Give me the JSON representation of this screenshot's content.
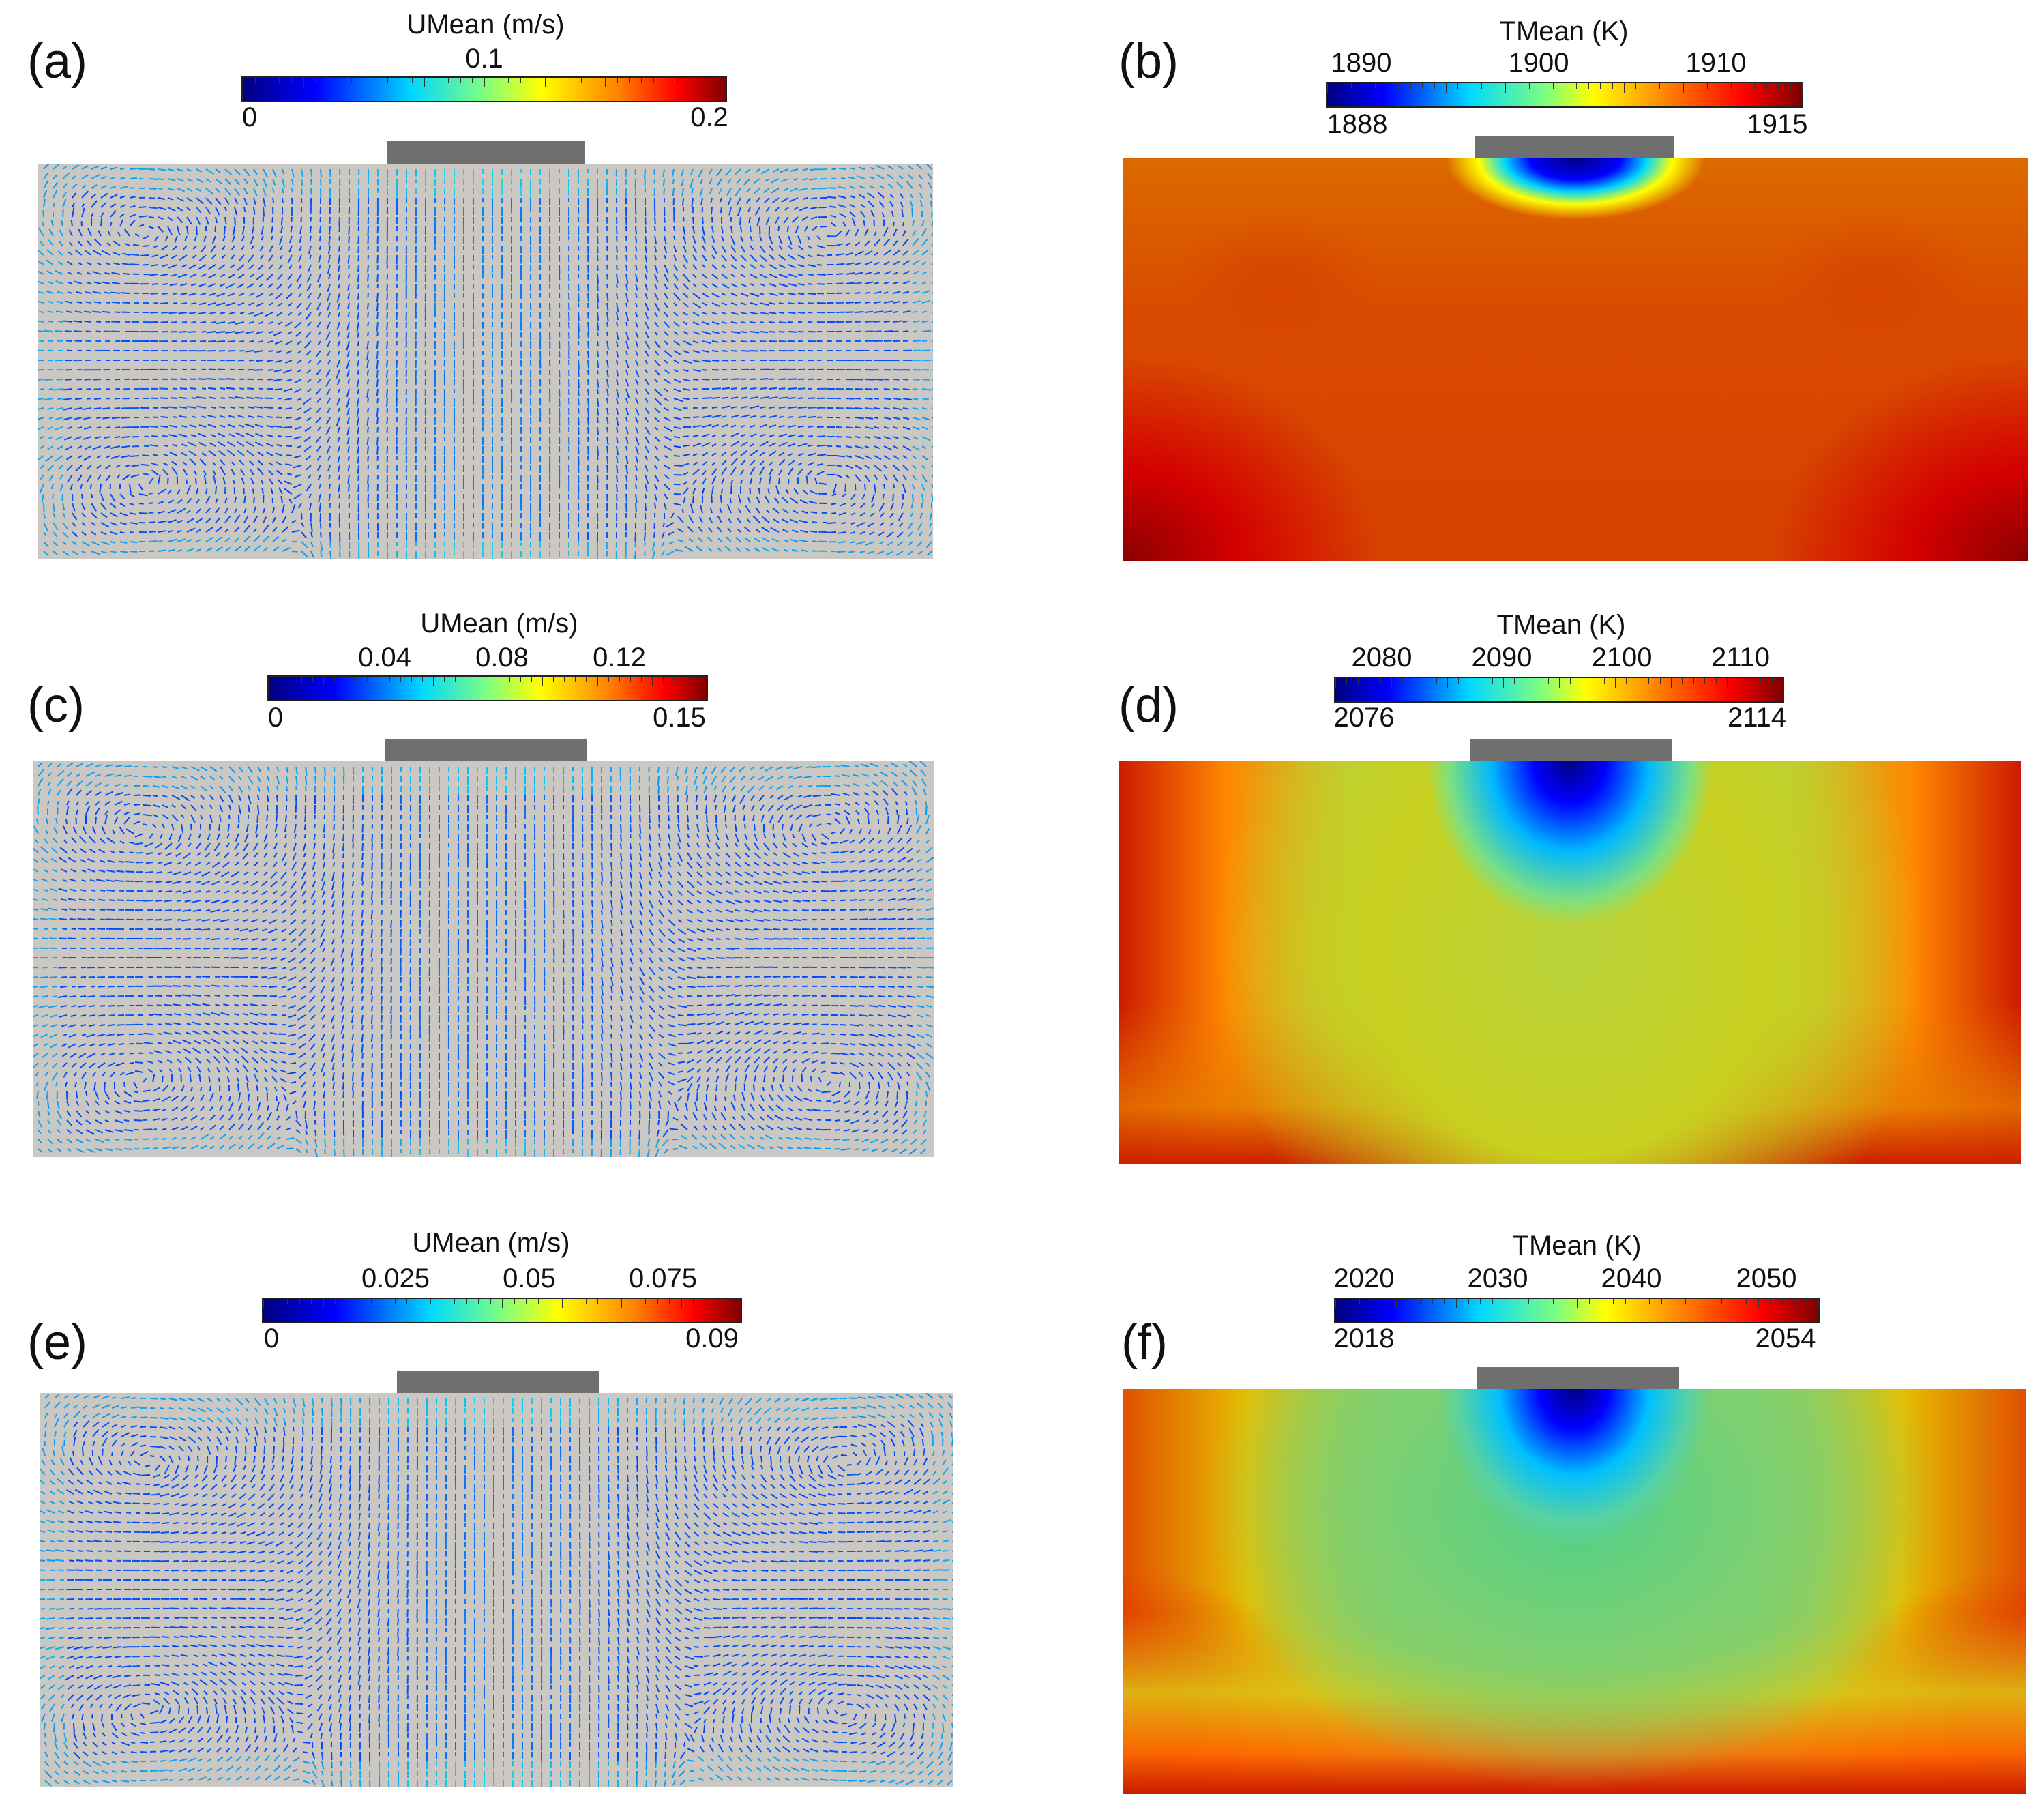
{
  "panels": [
    {
      "id": "a",
      "label": "(a)",
      "cb_title": "UMean (m/s)",
      "top_ticks": [
        "0.1"
      ],
      "min": "0",
      "max": "0.2",
      "field": "velocity"
    },
    {
      "id": "b",
      "label": "(b)",
      "cb_title": "TMean (K)",
      "top_ticks": [
        "1890",
        "1900",
        "1910"
      ],
      "min": "1888",
      "max": "1915",
      "field": "temperature"
    },
    {
      "id": "c",
      "label": "(c)",
      "cb_title": "UMean (m/s)",
      "top_ticks": [
        "0.04",
        "0.08",
        "0.12"
      ],
      "min": "0",
      "max": "0.15",
      "field": "velocity"
    },
    {
      "id": "d",
      "label": "(d)",
      "cb_title": "TMean (K)",
      "top_ticks": [
        "2080",
        "2090",
        "2100",
        "2110"
      ],
      "min": "2076",
      "max": "2114",
      "field": "temperature"
    },
    {
      "id": "e",
      "label": "(e)",
      "cb_title": "UMean (m/s)",
      "top_ticks": [
        "0.025",
        "0.05",
        "0.075"
      ],
      "min": "0",
      "max": "0.09",
      "field": "velocity"
    },
    {
      "id": "f",
      "label": "(f)",
      "cb_title": "TMean (K)",
      "top_ticks": [
        "2020",
        "2030",
        "2040",
        "2050"
      ],
      "min": "2018",
      "max": "2054",
      "field": "temperature"
    }
  ],
  "colors": {
    "velocity_map": [
      "#00007f",
      "#0000ff",
      "#00d8ff",
      "#7fff7f",
      "#ffff00",
      "#ff7f00",
      "#ff0000",
      "#7f0000"
    ],
    "temperature_map": [
      "#00007f",
      "#0000ff",
      "#00d8ff",
      "#7fff7f",
      "#ffff00",
      "#ff7f00",
      "#ff0000",
      "#7f0000"
    ],
    "background_domain": "#cbc8c3",
    "heater": "#6f6f6f"
  }
}
